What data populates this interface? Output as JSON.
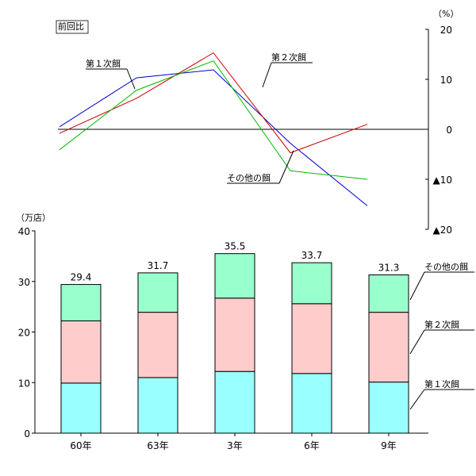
{
  "chart_data": [
    {
      "type": "line",
      "title": "前回比",
      "y_unit": "（%）",
      "x": [
        "60年",
        "63年",
        "3年",
        "6年",
        "9年"
      ],
      "ylim": [
        -20,
        20
      ],
      "y_ticks": [
        20,
        10,
        0,
        -10,
        -20
      ],
      "y_tick_labels": [
        "20",
        "10",
        "0",
        "▲10",
        "▲20"
      ],
      "series": [
        {
          "name": "第１次餌",
          "color": "#0000cc",
          "values": [
            0.5,
            10.3,
            11.9,
            -2.8,
            -15.3
          ]
        },
        {
          "name": "第２次餌",
          "color": "#cc0000",
          "values": [
            -0.8,
            6.2,
            15.3,
            -4.7,
            1.0
          ]
        },
        {
          "name": "その他の餌",
          "color": "#00bb00",
          "values": [
            -4.1,
            7.8,
            13.7,
            -8.3,
            -10.0
          ]
        }
      ]
    },
    {
      "type": "bar",
      "stacked": true,
      "y_unit": "（万店）",
      "categories": [
        "60年",
        "63年",
        "3年",
        "6年",
        "9年"
      ],
      "ylim": [
        0,
        40
      ],
      "y_ticks": [
        0,
        10,
        20,
        30,
        40
      ],
      "totals": [
        "29.4",
        "31.7",
        "35.5",
        "33.7",
        "31.3"
      ],
      "series": [
        {
          "name": "第１次餌",
          "color": "#99ffff",
          "values": [
            9.9,
            11.0,
            12.2,
            11.8,
            10.1
          ]
        },
        {
          "name": "第２次餌",
          "color": "#ffcccc",
          "values": [
            12.3,
            12.9,
            14.5,
            13.8,
            13.8
          ]
        },
        {
          "name": "その他の餌",
          "color": "#99ffcc",
          "values": [
            7.2,
            7.8,
            8.8,
            8.1,
            7.4
          ]
        }
      ]
    }
  ]
}
